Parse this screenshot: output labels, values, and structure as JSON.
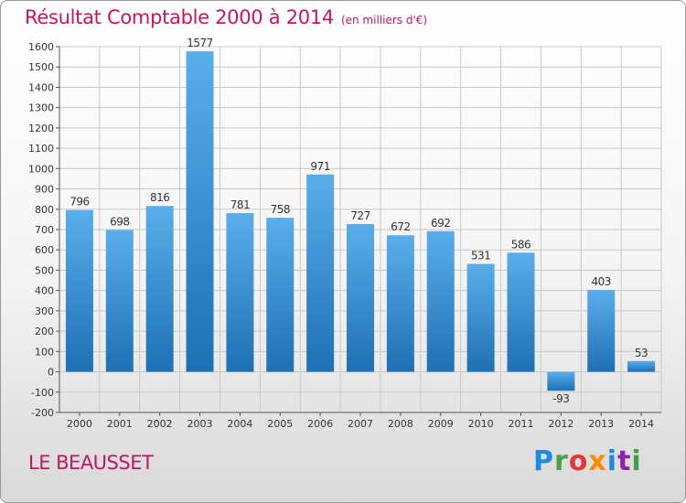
{
  "chart_data": {
    "type": "bar",
    "title": "Résultat Comptable 2000 à 2014",
    "subtitle": "(en milliers d'€)",
    "categories": [
      "2000",
      "2001",
      "2002",
      "2003",
      "2004",
      "2005",
      "2006",
      "2007",
      "2008",
      "2009",
      "2010",
      "2011",
      "2012",
      "2013",
      "2014"
    ],
    "values": [
      796,
      698,
      816,
      1577,
      781,
      758,
      971,
      727,
      672,
      692,
      531,
      586,
      -93,
      403,
      53
    ],
    "ylim": [
      -200,
      1600
    ],
    "yticks": [
      -200,
      -100,
      0,
      100,
      200,
      300,
      400,
      500,
      600,
      700,
      800,
      900,
      1000,
      1100,
      1200,
      1300,
      1400,
      1500,
      1600
    ],
    "xlabel": "",
    "ylabel": "",
    "grid": true
  },
  "commune": "LE BEAUSSET",
  "logo": {
    "letters": [
      "P",
      "r",
      "o",
      "x",
      "i",
      "t",
      "i"
    ],
    "colors": [
      "#1e88e5",
      "#43a047",
      "#e53935",
      "#fb8c00",
      "#1e88e5",
      "#8e24aa",
      "#43a047"
    ]
  },
  "colors": {
    "accent": "#c2185b",
    "bar_top": "#5aaeea",
    "bar_bottom": "#1f6fb4",
    "grid": "#c8c8c8",
    "axis": "#555555",
    "text": "#333333"
  }
}
